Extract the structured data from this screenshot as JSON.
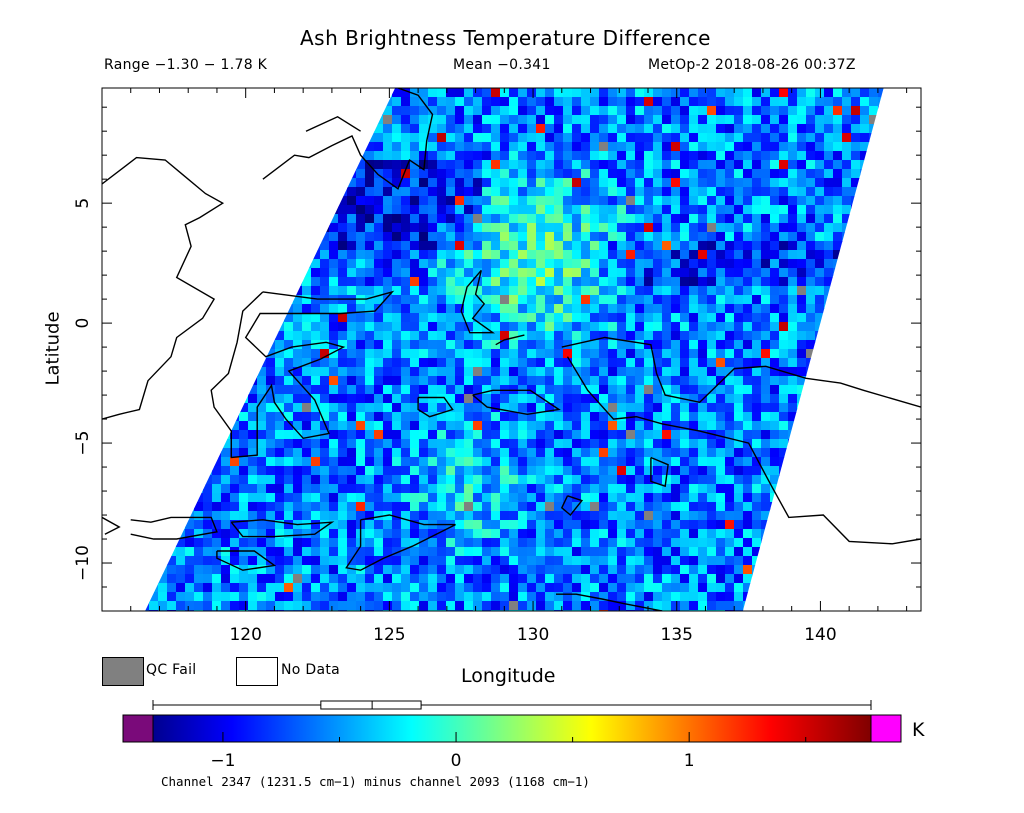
{
  "header": {
    "title": "Ash Brightness Temperature Difference",
    "range": "Range −1.30 − 1.78 K",
    "mean": "Mean −0.341",
    "satellite": "MetOp-2 2018-08-26 00:37Z"
  },
  "legend": {
    "qc_fail": "QC Fail",
    "no_data": "No Data"
  },
  "colorbar": {
    "unit": "K",
    "caption": "Channel 2347 (1231.5 cm−1) minus channel 2093 (1168 cm−1)",
    "ticks": [
      {
        "value": -1,
        "label": "−1"
      },
      {
        "value": 0,
        "label": "0"
      },
      {
        "value": 1,
        "label": "1"
      }
    ],
    "range": [
      -1.3,
      1.78
    ],
    "boxplot": {
      "min": -1.3,
      "q1": -0.58,
      "median": -0.36,
      "q3": -0.15,
      "max": 1.78
    },
    "colors": {
      "below": "#7a0a7a",
      "above": "#ff00ff",
      "qc_fail": "#808080",
      "no_data": "#ffffff"
    }
  },
  "chart_data": {
    "type": "heatmap",
    "title": "Ash Brightness Temperature Difference",
    "xlabel": "Longitude",
    "ylabel": "Latitude",
    "xlim": [
      115,
      143.5
    ],
    "ylim": [
      -12,
      9.8
    ],
    "xticks": [
      {
        "value": 120,
        "label": "120"
      },
      {
        "value": 125,
        "label": "125"
      },
      {
        "value": 130,
        "label": "130"
      },
      {
        "value": 135,
        "label": "135"
      },
      {
        "value": 140,
        "label": "140"
      }
    ],
    "yticks": [
      {
        "value": 5,
        "label": "5"
      },
      {
        "value": 0,
        "label": "0"
      },
      {
        "value": -5,
        "label": "−5"
      },
      {
        "value": -10,
        "label": "−10"
      }
    ],
    "swath": {
      "top_edge_lon": [
        125.2,
        142.2
      ],
      "bottom_edge_lon": [
        116.5,
        137.3
      ]
    },
    "value_range": [
      -1.3,
      1.78
    ],
    "mean": -0.341
  }
}
